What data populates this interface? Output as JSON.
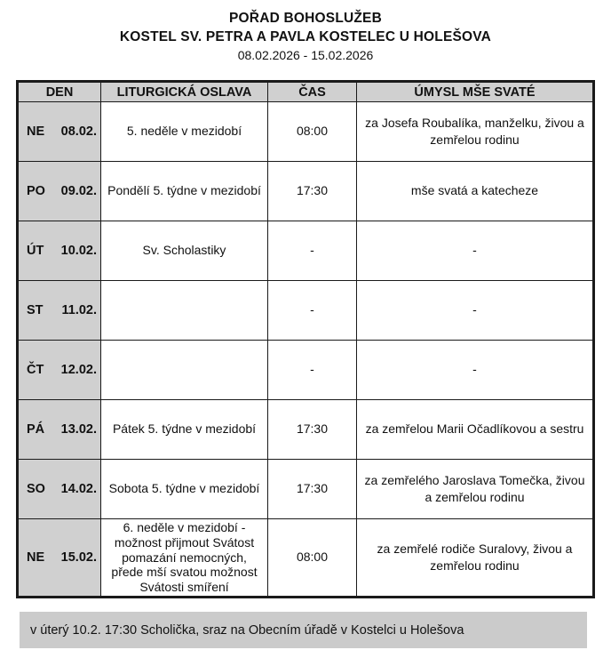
{
  "header": {
    "title": "POŘAD BOHOSLUŽEB",
    "subtitle": "KOSTEL SV. PETRA A PAVLA KOSTELEC U HOLEŠOVA",
    "date_range": "08.02.2026 - 15.02.2026"
  },
  "table": {
    "columns": [
      "DEN",
      "LITURGICKÁ OSLAVA",
      "ČAS",
      "ÚMYSL MŠE SVATÉ"
    ],
    "rows": [
      {
        "day": "NE",
        "date": "08.02.",
        "celebration": "5. neděle v mezidobí",
        "time": "08:00",
        "intention": "za Josefa Roubalíka, manželku, živou a zemřelou rodinu"
      },
      {
        "day": "PO",
        "date": "09.02.",
        "celebration": "Pondělí 5. týdne v mezidobí",
        "time": "17:30",
        "intention": "mše svatá a katecheze"
      },
      {
        "day": "ÚT",
        "date": "10.02.",
        "celebration": "Sv. Scholastiky",
        "time": "-",
        "intention": "-"
      },
      {
        "day": "ST",
        "date": "11.02.",
        "celebration": "",
        "time": "-",
        "intention": "-"
      },
      {
        "day": "ČT",
        "date": "12.02.",
        "celebration": "",
        "time": "-",
        "intention": "-"
      },
      {
        "day": "PÁ",
        "date": "13.02.",
        "celebration": "Pátek 5. týdne v mezidobí",
        "time": "17:30",
        "intention": "za zemřelou Marii Očadlíkovou a sestru"
      },
      {
        "day": "SO",
        "date": "14.02.",
        "celebration": "Sobota 5. týdne v mezidobí",
        "time": "17:30",
        "intention": "za zemřelého Jaroslava Tomečka, živou a zemřelou rodinu"
      },
      {
        "day": "NE",
        "date": "15.02.",
        "celebration": "6. neděle v mezidobí - možnost přijmout Svátost pomazání nemocných, přede mší svatou možnost Svátosti smíření",
        "time": "08:00",
        "intention": "za zemřelé rodiče Suralovy, živou a zemřelou rodinu"
      }
    ]
  },
  "footer": {
    "note": "v úterý 10.2. 17:30 Scholička, sraz na Obecním úřadě v Kostelci u Holešova"
  },
  "colors": {
    "cell_gray": "#d0d0d0",
    "footer_gray": "#cbcbcb",
    "border": "#1a1a1a"
  }
}
